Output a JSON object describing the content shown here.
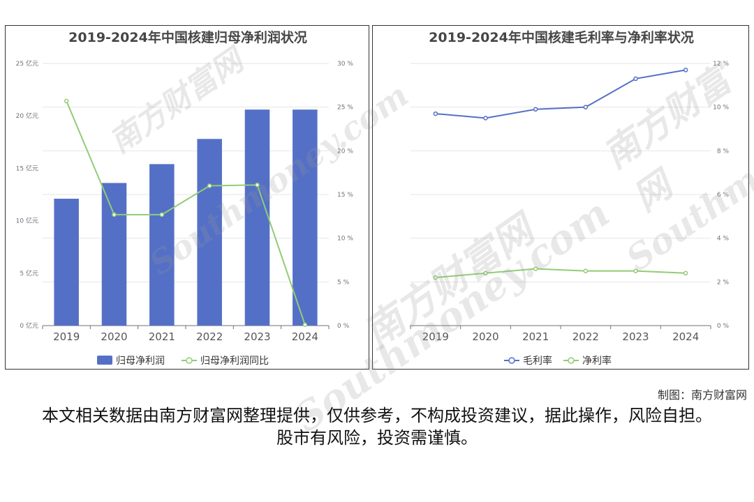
{
  "chart_data": [
    {
      "type": "bar",
      "title": "2019-2024年中国核建归母净利润状况",
      "categories": [
        "2019",
        "2020",
        "2021",
        "2022",
        "2023",
        "2024"
      ],
      "y_left_ticks": [
        "0 亿元",
        "5 亿元",
        "10 亿元",
        "15 亿元",
        "20 亿元",
        "25 亿元"
      ],
      "y_right_ticks": [
        "0 %",
        "5 %",
        "10 %",
        "15 %",
        "20 %",
        "25 %",
        "30 %"
      ],
      "ylim_left": [
        0,
        25
      ],
      "ylim_right": [
        0,
        30
      ],
      "series": [
        {
          "name": "归母净利润",
          "kind": "bar",
          "axis": "left",
          "color": "#5470c6",
          "values": [
            12.1,
            13.6,
            15.4,
            17.8,
            20.6,
            20.6
          ]
        },
        {
          "name": "归母净利润同比",
          "kind": "line",
          "axis": "right",
          "color": "#91cc75",
          "values": [
            25.7,
            12.7,
            12.7,
            16.0,
            16.1,
            0.1
          ]
        }
      ],
      "legend_position": "bottom",
      "grid": true
    },
    {
      "type": "line",
      "title": "2019-2024年中国核建毛利率与净利率状况",
      "categories": [
        "2019",
        "2020",
        "2021",
        "2022",
        "2023",
        "2024"
      ],
      "y_right_ticks": [
        "0 %",
        "2 %",
        "4 %",
        "6 %",
        "8 %",
        "10 %",
        "12 %"
      ],
      "ylim": [
        0,
        12
      ],
      "series": [
        {
          "name": "毛利率",
          "color": "#5470c6",
          "values": [
            9.7,
            9.5,
            9.9,
            10.0,
            11.3,
            11.7
          ]
        },
        {
          "name": "净利率",
          "color": "#91cc75",
          "values": [
            2.2,
            2.4,
            2.6,
            2.5,
            2.5,
            2.4
          ]
        }
      ],
      "legend_position": "bottom",
      "grid": true
    }
  ],
  "watermarks": [
    "南方财富网",
    "Southmoney.com"
  ],
  "footer": {
    "credit": "制图：南方财富网",
    "disclaimer": "本文相关数据由南方财富网整理提供，仅供参考，不构成投资建议，据此操作，风险自担。股市有风险，投资需谨慎。"
  }
}
